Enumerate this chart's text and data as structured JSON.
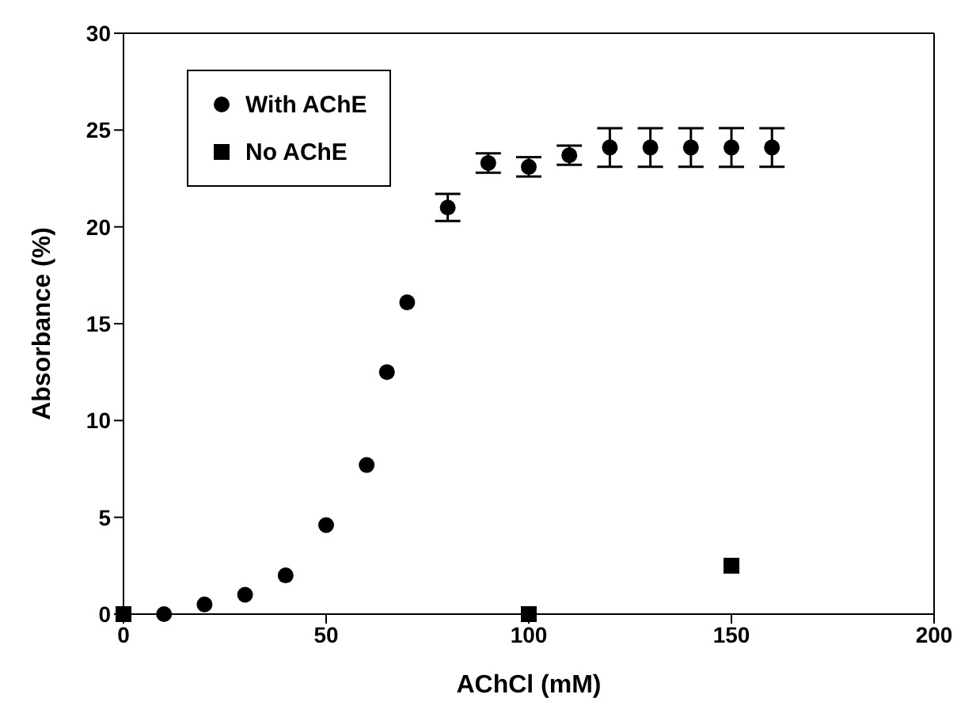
{
  "chart_data": {
    "type": "scatter",
    "xlabel": "AChCl (mM)",
    "ylabel": "Absorbance (%)",
    "xlim": [
      0,
      200
    ],
    "xticks": [
      0,
      50,
      100,
      150,
      200
    ],
    "ylim": [
      0,
      30
    ],
    "yticks": [
      0,
      5,
      10,
      15,
      20,
      25,
      30
    ],
    "grid": false,
    "legend": "top left",
    "series": [
      {
        "name": "With AChE",
        "color": "#000000",
        "marker": "circle",
        "x": [
          10,
          20,
          30,
          40,
          50,
          60,
          65,
          70,
          80,
          90,
          100,
          110,
          120,
          130,
          140,
          150,
          160
        ],
        "values": [
          0,
          0.5,
          1,
          2,
          4.6,
          7.7,
          12.5,
          16.1,
          21,
          23.3,
          23.1,
          23.7,
          24.1,
          24.1,
          24.1,
          24.1,
          24.1
        ],
        "errors": [
          null,
          null,
          null,
          null,
          null,
          null,
          null,
          null,
          0.7,
          0.5,
          0.5,
          0.5,
          1,
          1,
          1,
          1,
          1
        ]
      },
      {
        "name": "No AChE",
        "color": "#000000",
        "marker": "square",
        "x": [
          0,
          100,
          150
        ],
        "values": [
          0,
          0,
          2.5
        ]
      }
    ]
  }
}
